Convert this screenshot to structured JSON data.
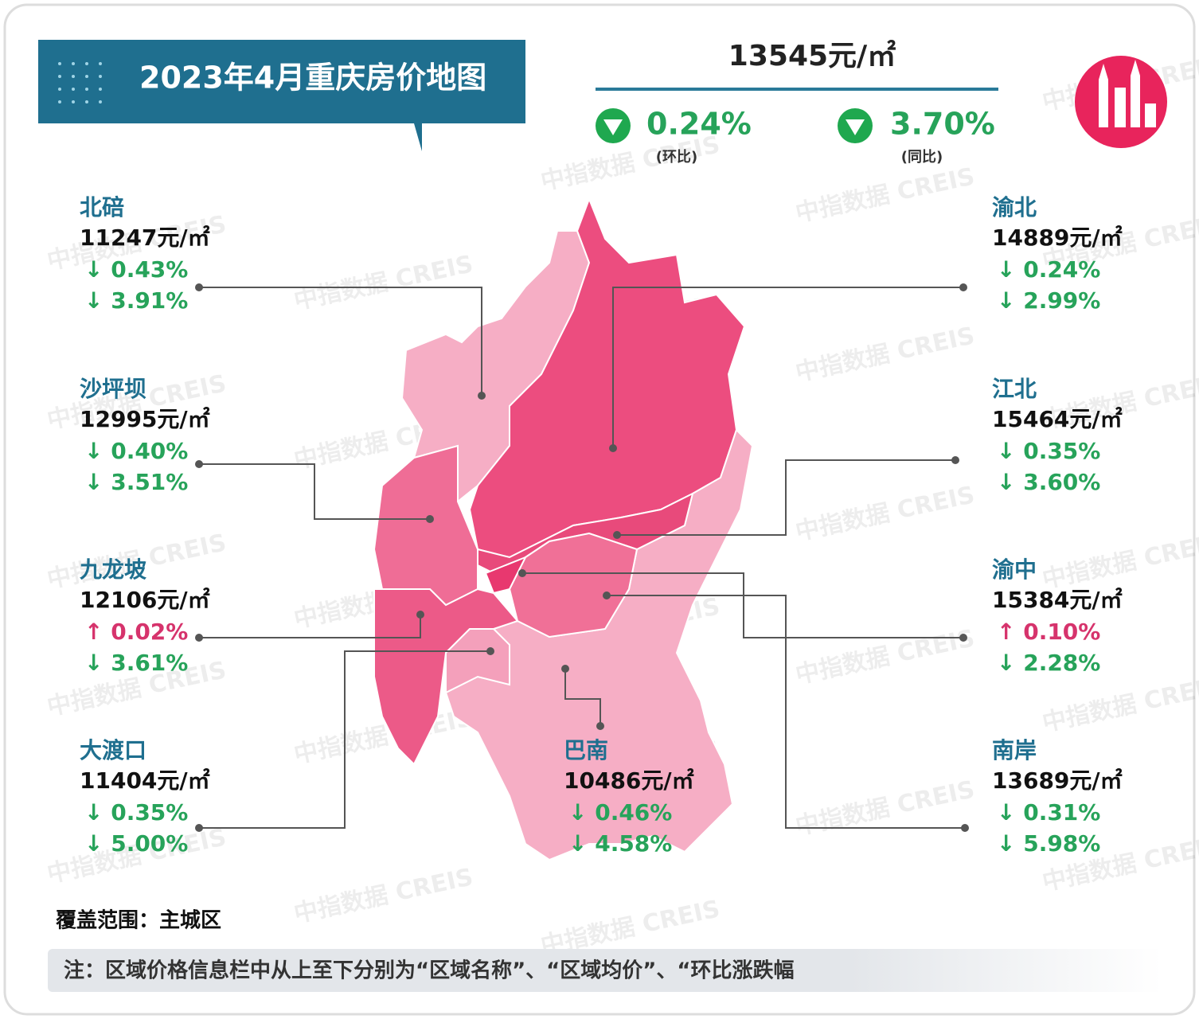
{
  "header": {
    "title": "2023年4月重庆房价地图",
    "price": "13545元/㎡",
    "mom": {
      "value": "0.24%",
      "label": "(环比)"
    },
    "yoy": {
      "value": "3.70%",
      "label": "(同比)"
    }
  },
  "districts": [
    {
      "name": "北碚",
      "price": "11247元/㎡",
      "mom": {
        "text": "↓ 0.43%",
        "direction": "down"
      },
      "yoy": {
        "text": "↓ 3.91%",
        "direction": "down"
      }
    },
    {
      "name": "沙坪坝",
      "price": "12995元/㎡",
      "mom": {
        "text": "↓ 0.40%",
        "direction": "down"
      },
      "yoy": {
        "text": "↓ 3.51%",
        "direction": "down"
      }
    },
    {
      "name": "九龙坡",
      "price": "12106元/㎡",
      "mom": {
        "text": "↑ 0.02%",
        "direction": "up"
      },
      "yoy": {
        "text": "↓ 3.61%",
        "direction": "down"
      }
    },
    {
      "name": "大渡口",
      "price": "11404元/㎡",
      "mom": {
        "text": "↓ 0.35%",
        "direction": "down"
      },
      "yoy": {
        "text": "↓ 5.00%",
        "direction": "down"
      }
    },
    {
      "name": "渝北",
      "price": "14889元/㎡",
      "mom": {
        "text": "↓ 0.24%",
        "direction": "down"
      },
      "yoy": {
        "text": "↓ 2.99%",
        "direction": "down"
      }
    },
    {
      "name": "江北",
      "price": "15464元/㎡",
      "mom": {
        "text": "↓ 0.35%",
        "direction": "down"
      },
      "yoy": {
        "text": "↓ 3.60%",
        "direction": "down"
      }
    },
    {
      "name": "渝中",
      "price": "15384元/㎡",
      "mom": {
        "text": "↑ 0.10%",
        "direction": "up"
      },
      "yoy": {
        "text": "↓ 2.28%",
        "direction": "down"
      }
    },
    {
      "name": "南岸",
      "price": "13689元/㎡",
      "mom": {
        "text": "↓ 0.31%",
        "direction": "down"
      },
      "yoy": {
        "text": "↓ 5.98%",
        "direction": "down"
      }
    },
    {
      "name": "巴南",
      "price": "10486元/㎡",
      "mom": {
        "text": "↓ 0.46%",
        "direction": "down"
      },
      "yoy": {
        "text": "↓ 4.58%",
        "direction": "down"
      }
    }
  ],
  "footer": {
    "coverage": "覆盖范围：主城区",
    "note": "注：区域价格信息栏中从上至下分别为“区域名称”、“区域均价”、“环比涨跌幅"
  },
  "watermark": "中指数据 CREIS"
}
